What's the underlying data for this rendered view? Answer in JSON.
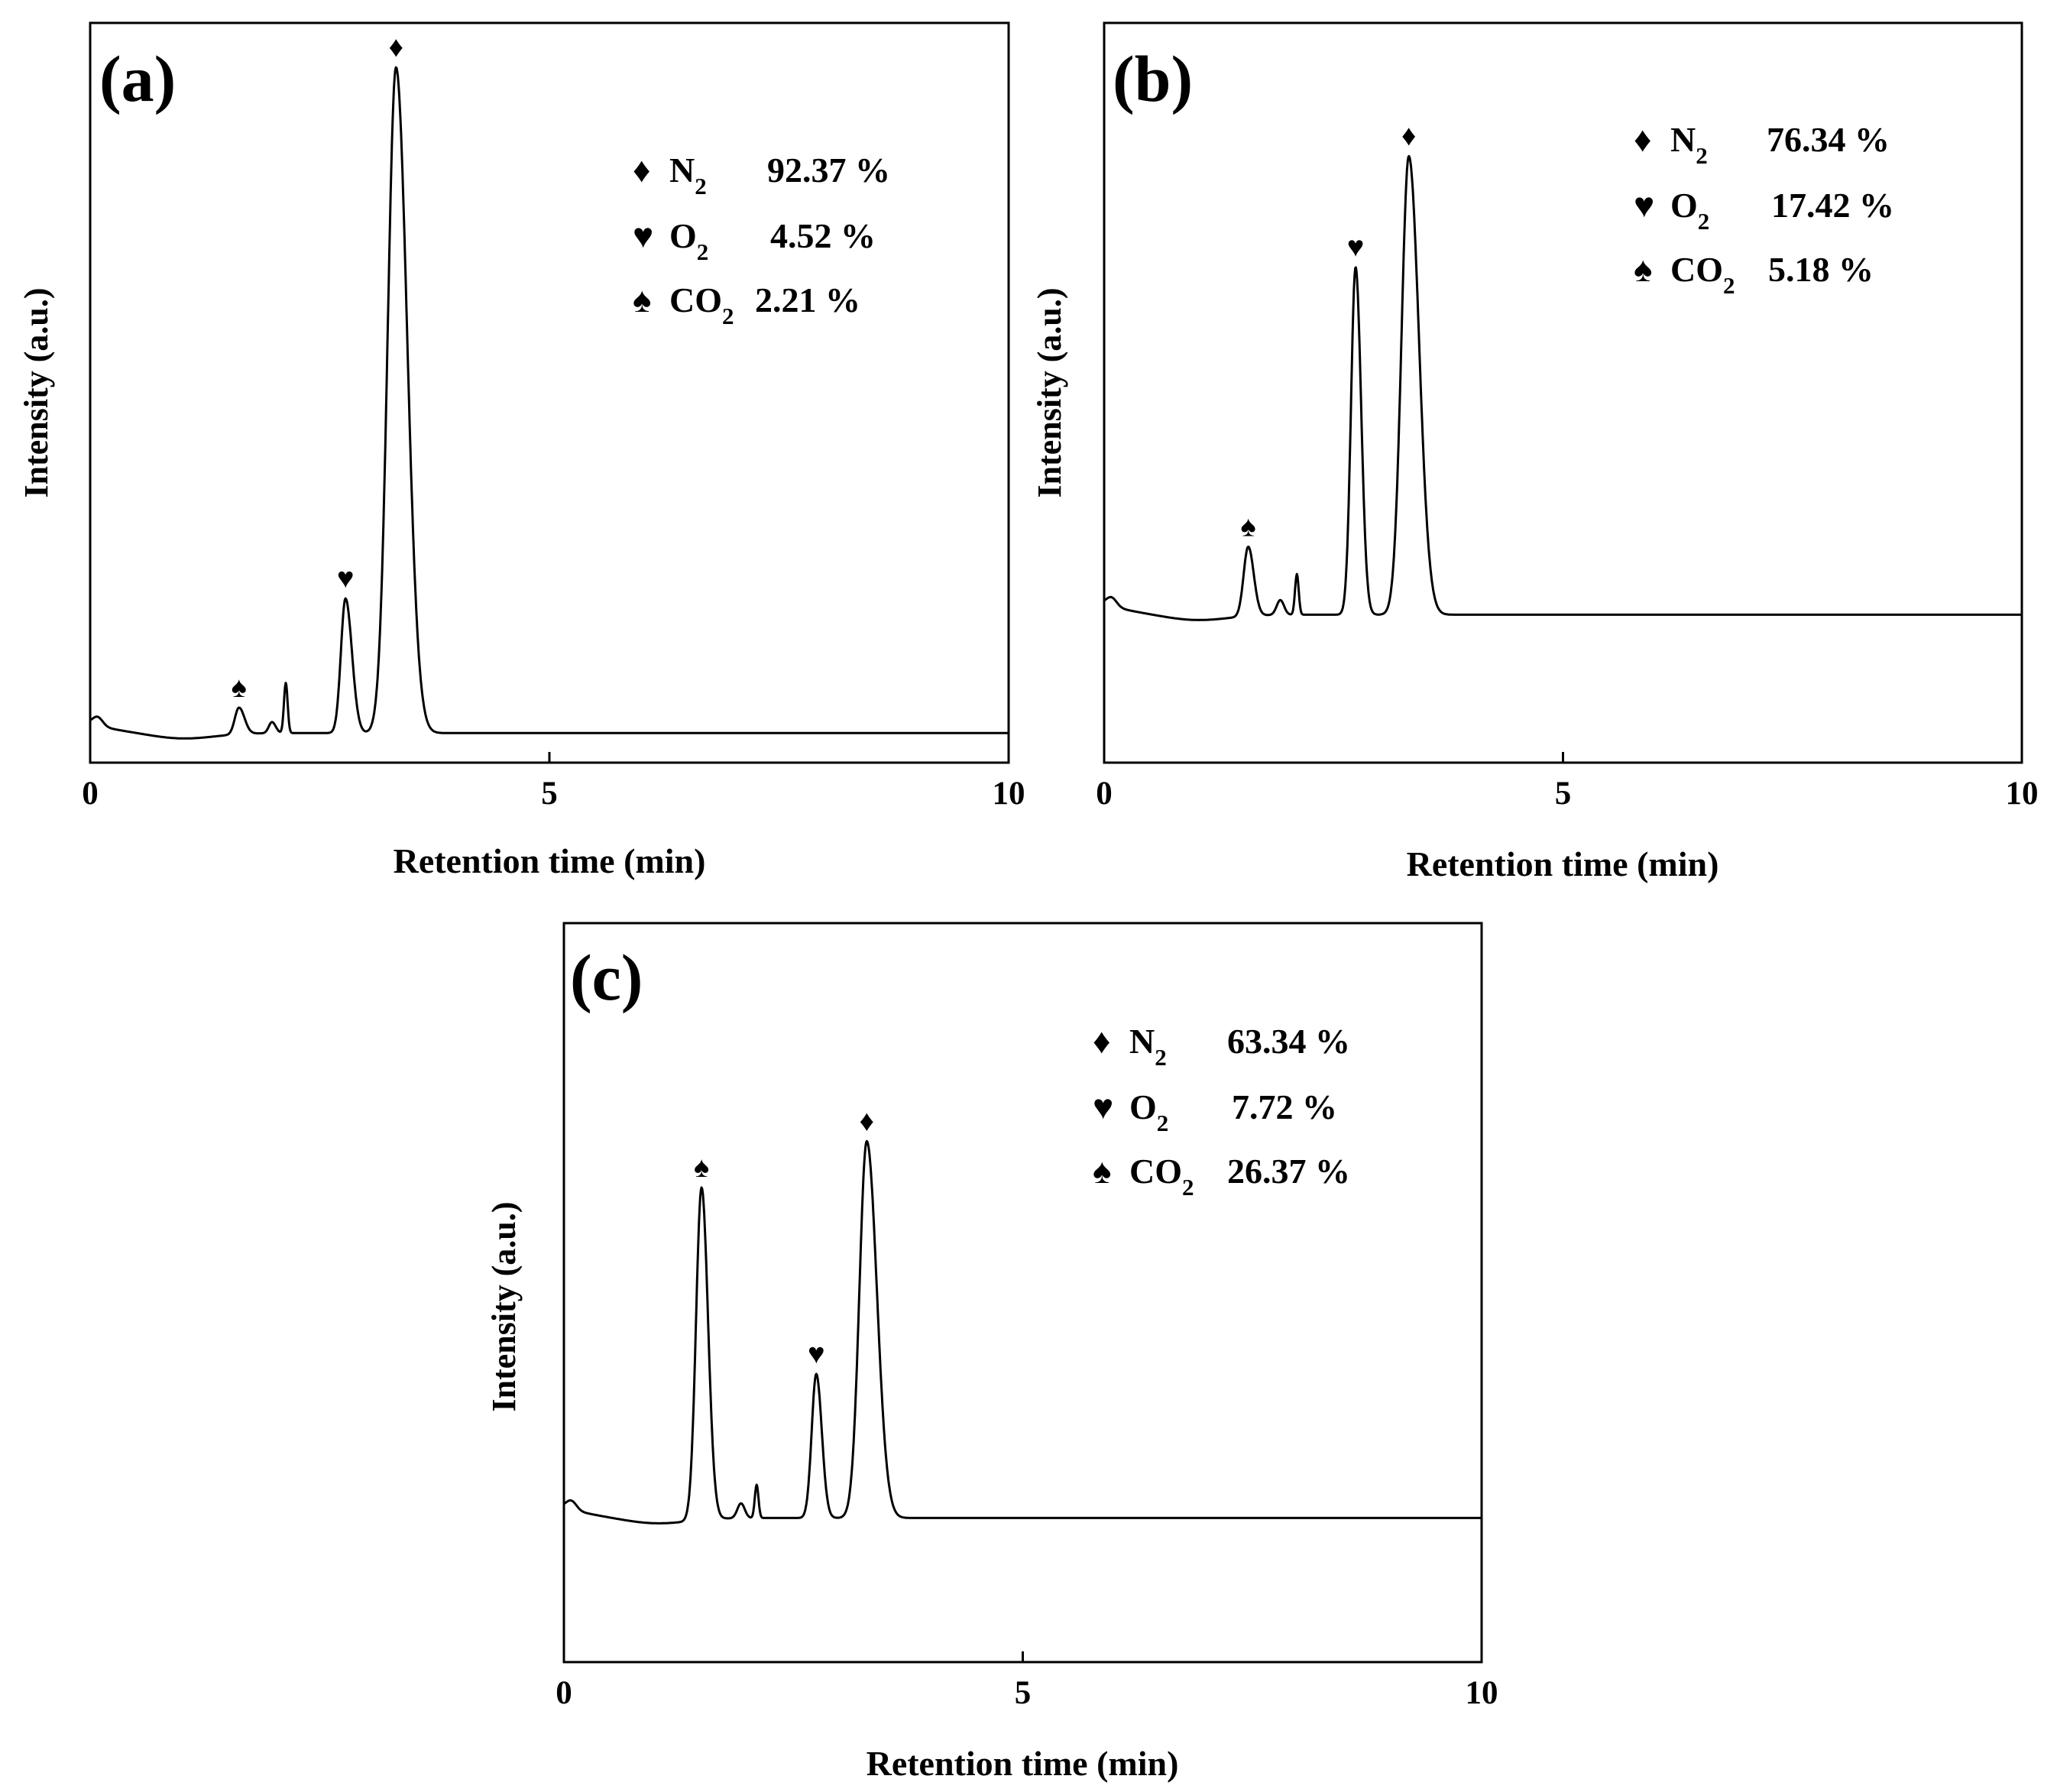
{
  "chart_data": [
    {
      "type": "line",
      "panel_label": "(a)",
      "xlabel": "Retention time (min)",
      "ylabel": "Intensity (a.u.)",
      "xlim": [
        0,
        10
      ],
      "xticks": [
        "0",
        "5",
        "10"
      ],
      "baseline": 0.04,
      "baseline_start": 0.053,
      "peaks": [
        {
          "t": 1.62,
          "h": 0.036,
          "w": 0.045,
          "tail": 0.06
        },
        {
          "t": 1.98,
          "h": 0.015,
          "w": 0.035,
          "tail": 0.04
        },
        {
          "t": 2.13,
          "h": 0.068,
          "w": 0.02,
          "tail": 0.02
        },
        {
          "t": 2.78,
          "h": 0.182,
          "w": 0.05,
          "tail": 0.07
        },
        {
          "t": 3.33,
          "h": 0.9,
          "w": 0.09,
          "tail": 0.12
        }
      ],
      "markers": [
        {
          "symbol": "♠",
          "t": 1.62,
          "gas": "CO2"
        },
        {
          "symbol": "♥",
          "t": 2.78,
          "gas": "O2"
        },
        {
          "symbol": "♦",
          "t": 3.33,
          "gas": "N2"
        }
      ],
      "legend": [
        {
          "symbol": "♦",
          "base": "N",
          "sub": "2",
          "value": "92.37 %"
        },
        {
          "symbol": "♥",
          "base": "O",
          "sub": "2",
          "value": "4.52 %"
        },
        {
          "symbol": "♠",
          "base": "CO",
          "sub": "2",
          "value": "2.21 %"
        }
      ]
    },
    {
      "type": "line",
      "panel_label": "(b)",
      "xlabel": "Retention time (min)",
      "ylabel": "Intensity (a.u.)",
      "xlim": [
        0,
        10
      ],
      "xticks": [
        "0",
        "5",
        "10"
      ],
      "baseline": 0.2,
      "baseline_start": 0.215,
      "peaks": [
        {
          "t": 1.57,
          "h": 0.094,
          "w": 0.05,
          "tail": 0.06
        },
        {
          "t": 1.92,
          "h": 0.02,
          "w": 0.04,
          "tail": 0.04
        },
        {
          "t": 2.1,
          "h": 0.055,
          "w": 0.02,
          "tail": 0.02
        },
        {
          "t": 2.74,
          "h": 0.47,
          "w": 0.05,
          "tail": 0.06
        },
        {
          "t": 3.32,
          "h": 0.62,
          "w": 0.08,
          "tail": 0.11
        }
      ],
      "markers": [
        {
          "symbol": "♠",
          "t": 1.57,
          "gas": "CO2"
        },
        {
          "symbol": "♥",
          "t": 2.74,
          "gas": "O2"
        },
        {
          "symbol": "♦",
          "t": 3.32,
          "gas": "N2"
        }
      ],
      "legend": [
        {
          "symbol": "♦",
          "base": "N",
          "sub": "2",
          "value": "76.34 %"
        },
        {
          "symbol": "♥",
          "base": "O",
          "sub": "2",
          "value": "17.42 %"
        },
        {
          "symbol": "♠",
          "base": "CO",
          "sub": "2",
          "value": "5.18 %"
        }
      ]
    },
    {
      "type": "line",
      "panel_label": "(c)",
      "xlabel": "Retention time (min)",
      "ylabel": "Intensity (a.u.)",
      "xlim": [
        0,
        10
      ],
      "xticks": [
        "0",
        "5",
        "10"
      ],
      "baseline": 0.195,
      "baseline_start": 0.21,
      "peaks": [
        {
          "t": 1.5,
          "h": 0.45,
          "w": 0.06,
          "tail": 0.07
        },
        {
          "t": 1.93,
          "h": 0.02,
          "w": 0.04,
          "tail": 0.04
        },
        {
          "t": 2.1,
          "h": 0.045,
          "w": 0.02,
          "tail": 0.02
        },
        {
          "t": 2.75,
          "h": 0.195,
          "w": 0.05,
          "tail": 0.06
        },
        {
          "t": 3.3,
          "h": 0.51,
          "w": 0.08,
          "tail": 0.11
        }
      ],
      "markers": [
        {
          "symbol": "♠",
          "t": 1.5,
          "gas": "CO2"
        },
        {
          "symbol": "♥",
          "t": 2.75,
          "gas": "O2"
        },
        {
          "symbol": "♦",
          "t": 3.3,
          "gas": "N2"
        }
      ],
      "legend": [
        {
          "symbol": "♦",
          "base": "N",
          "sub": "2",
          "value": "63.34 %"
        },
        {
          "symbol": "♥",
          "base": "O",
          "sub": "2",
          "value": "7.72 %"
        },
        {
          "symbol": "♠",
          "base": "CO",
          "sub": "2",
          "value": "26.37 %"
        }
      ]
    }
  ]
}
